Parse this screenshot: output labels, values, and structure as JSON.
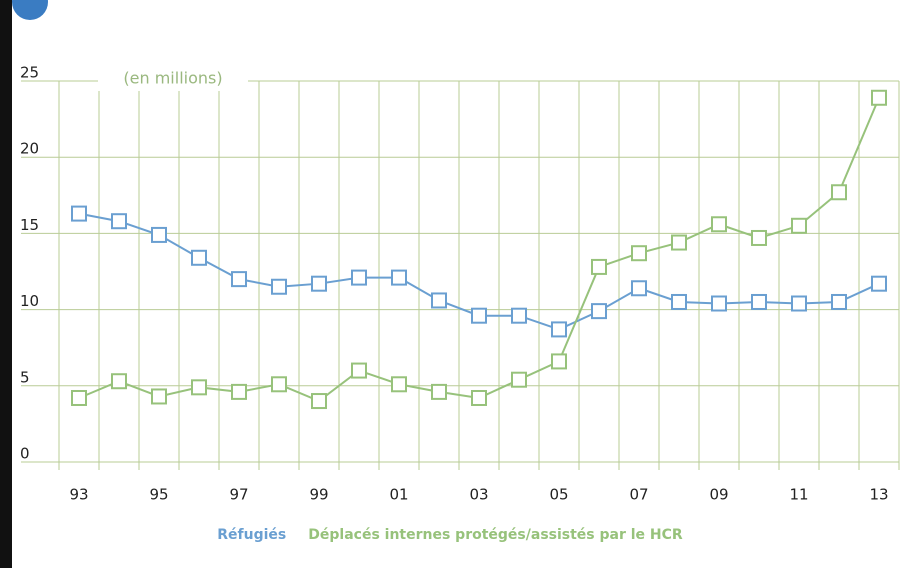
{
  "chart_data": {
    "type": "line",
    "annotation": "(en millions)",
    "categories": [
      "93",
      null,
      "95",
      null,
      "97",
      null,
      "99",
      null,
      "01",
      null,
      "03",
      null,
      "05",
      null,
      "07",
      null,
      "09",
      null,
      "11",
      null,
      "13"
    ],
    "series": [
      {
        "name": "Réfugiés",
        "color": "#6a9fd1",
        "values": [
          16.3,
          15.8,
          14.9,
          13.4,
          12.0,
          11.5,
          11.7,
          12.1,
          12.1,
          10.6,
          9.6,
          9.6,
          8.7,
          9.9,
          11.4,
          10.5,
          10.4,
          10.5,
          10.4,
          10.5,
          11.7
        ]
      },
      {
        "name": "Déplacés internes protégés/assistés par le HCR",
        "color": "#97c27b",
        "values": [
          4.2,
          5.3,
          4.3,
          4.9,
          4.6,
          5.1,
          4.0,
          6.0,
          5.1,
          4.6,
          4.2,
          5.4,
          6.6,
          12.8,
          13.7,
          14.4,
          15.6,
          14.7,
          15.5,
          17.7,
          23.9
        ]
      }
    ],
    "ylim": [
      0,
      25
    ],
    "yticks": [
      0,
      5,
      10,
      15,
      20,
      25
    ],
    "grid": true
  }
}
